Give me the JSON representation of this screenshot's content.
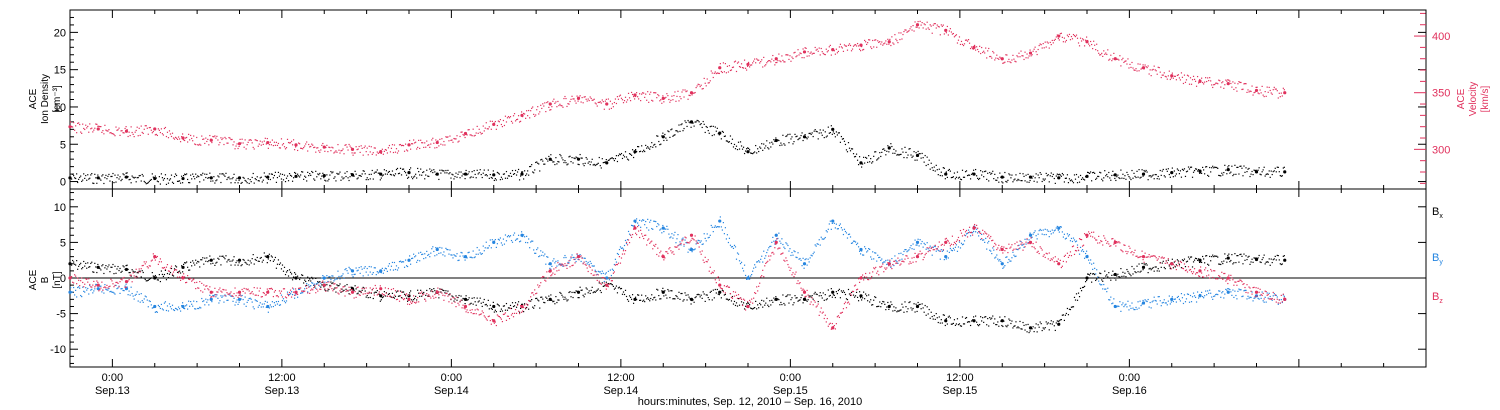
{
  "chart_data": [
    {
      "type": "scatter",
      "panel": "top",
      "ylabel_left": [
        "ACE",
        "Ion Density",
        "[cm⁻³]"
      ],
      "ylabel_right": [
        "ACE",
        "Velocity",
        "[km/s]"
      ],
      "yticks_left": [
        0,
        5,
        10,
        15,
        20
      ],
      "ylim_left": [
        -1,
        23
      ],
      "yticks_right": [
        300,
        350,
        400
      ],
      "ylim_right": [
        265,
        423
      ],
      "x_unit": "hours since Sep.12 21:00",
      "xlim": [
        0,
        96
      ],
      "series": [
        {
          "color": "#000000",
          "axis": "left",
          "x": [
            0,
            2,
            4,
            6,
            8,
            10,
            12,
            14,
            16,
            18,
            20,
            22,
            24,
            26,
            28,
            30,
            32,
            34,
            36,
            38,
            40,
            42,
            44,
            46,
            48,
            50,
            52,
            54,
            56,
            58,
            60,
            62,
            64,
            66,
            68,
            70,
            72,
            74,
            76,
            78,
            80,
            82,
            84,
            86
          ],
          "y": [
            0.5,
            0.5,
            0.6,
            0.4,
            0.4,
            0.5,
            0.5,
            0.6,
            0.7,
            0.8,
            0.9,
            1.0,
            1.2,
            1.0,
            1.0,
            0.9,
            1.0,
            3.0,
            3.0,
            2.5,
            4.0,
            6.0,
            8.0,
            6.5,
            4.0,
            5.5,
            6.0,
            7.0,
            2.5,
            4.5,
            3.5,
            1.0,
            1.0,
            0.6,
            0.6,
            0.5,
            0.7,
            0.9,
            1.0,
            1.2,
            1.4,
            1.6,
            1.3,
            1.3
          ]
        },
        {
          "color": "#e0305c",
          "axis": "right",
          "x": [
            0,
            2,
            4,
            6,
            8,
            10,
            12,
            14,
            16,
            18,
            20,
            22,
            24,
            26,
            28,
            30,
            32,
            34,
            36,
            38,
            40,
            42,
            44,
            46,
            48,
            50,
            52,
            54,
            56,
            58,
            60,
            62,
            64,
            66,
            68,
            70,
            72,
            74,
            76,
            78,
            80,
            82,
            84,
            86
          ],
          "y": [
            320,
            318,
            316,
            318,
            310,
            308,
            305,
            306,
            304,
            302,
            300,
            298,
            304,
            306,
            314,
            322,
            330,
            340,
            345,
            340,
            348,
            345,
            350,
            372,
            375,
            380,
            386,
            388,
            392,
            395,
            410,
            405,
            390,
            380,
            385,
            400,
            395,
            380,
            372,
            365,
            360,
            358,
            352,
            350
          ]
        }
      ]
    },
    {
      "type": "scatter",
      "panel": "bottom",
      "ylabel_left": [
        "ACE",
        "B",
        "[nT]"
      ],
      "yticks": [
        -10,
        -5,
        0,
        5,
        10
      ],
      "ylim": [
        -12.5,
        12.5
      ],
      "zero_line": true,
      "x_unit": "hours since Sep.12 21:00",
      "xlim": [
        0,
        96
      ],
      "series": [
        {
          "legend": "Bx",
          "color": "#000000",
          "x": [
            0,
            2,
            4,
            6,
            8,
            10,
            12,
            14,
            16,
            18,
            20,
            22,
            24,
            26,
            28,
            30,
            32,
            34,
            36,
            38,
            40,
            42,
            44,
            46,
            48,
            50,
            52,
            54,
            56,
            58,
            60,
            62,
            64,
            66,
            68,
            70,
            72,
            74,
            76,
            78,
            80,
            82,
            84,
            86
          ],
          "y": [
            2,
            1.5,
            1.2,
            0,
            1.5,
            2.5,
            2.5,
            3,
            0,
            -1,
            -1.5,
            -2.5,
            -2.5,
            -2,
            -3,
            -4,
            -4,
            -3,
            -2,
            -1,
            -3,
            -2,
            -3,
            -2,
            -4,
            -3,
            -3,
            -2,
            -2.5,
            -4,
            -4,
            -6,
            -6,
            -6,
            -7,
            -6.5,
            0,
            0.5,
            1.5,
            2,
            2.5,
            2.8,
            2.6,
            2.5
          ]
        },
        {
          "legend": "By",
          "color": "#2585e0",
          "x": [
            0,
            2,
            4,
            6,
            8,
            10,
            12,
            14,
            16,
            18,
            20,
            22,
            24,
            26,
            28,
            30,
            32,
            34,
            36,
            38,
            40,
            42,
            44,
            46,
            48,
            50,
            52,
            54,
            56,
            58,
            60,
            62,
            64,
            66,
            68,
            70,
            72,
            74,
            76,
            78,
            80,
            82,
            84,
            86
          ],
          "y": [
            -2,
            -1.5,
            -1.5,
            -4,
            -4,
            -3,
            -3,
            -4,
            -2,
            0,
            1,
            1,
            2.5,
            4,
            3,
            5,
            6,
            2,
            3,
            0,
            8,
            7,
            4,
            8,
            0,
            6,
            2,
            8,
            4,
            2,
            5,
            3,
            7,
            2,
            6,
            7,
            3,
            -4,
            -3.5,
            -3,
            -2.5,
            -2,
            -2.5,
            -3
          ]
        },
        {
          "legend": "Bz",
          "color": "#e0305c",
          "x": [
            0,
            2,
            4,
            6,
            8,
            10,
            12,
            14,
            16,
            18,
            20,
            22,
            24,
            26,
            28,
            30,
            32,
            34,
            36,
            38,
            40,
            42,
            44,
            46,
            48,
            50,
            52,
            54,
            56,
            58,
            60,
            62,
            64,
            66,
            68,
            70,
            72,
            74,
            76,
            78,
            80,
            82,
            84,
            86
          ],
          "y": [
            0,
            -1,
            -0.5,
            3,
            0,
            -2,
            -2,
            -2,
            -2,
            -1,
            -2,
            -1.5,
            -3,
            -2,
            -4,
            -6,
            -4,
            1,
            3,
            -1,
            7,
            3,
            6,
            -1,
            -4,
            5,
            -2,
            -7,
            0,
            2,
            3,
            5,
            7,
            4,
            5,
            2,
            6,
            5,
            3,
            2,
            1,
            0,
            -2,
            -3
          ]
        }
      ]
    }
  ],
  "legend": {
    "bx": "B",
    "bx_sub": "x",
    "by": "B",
    "by_sub": "y",
    "bz": "B",
    "bz_sub": "z"
  },
  "colors": {
    "black": "#000000",
    "pink": "#e0305c",
    "blue": "#2585e0"
  },
  "xaxis": {
    "ticks": [
      {
        "hour": 3,
        "time": "0:00",
        "date": "Sep.13"
      },
      {
        "hour": 15,
        "time": "12:00",
        "date": "Sep.13"
      },
      {
        "hour": 27,
        "time": "0:00",
        "date": "Sep.14"
      },
      {
        "hour": 39,
        "time": "12:00",
        "date": "Sep.14"
      },
      {
        "hour": 51,
        "time": "0:00",
        "date": "Sep.15"
      },
      {
        "hour": 63,
        "time": "12:00",
        "date": "Sep.15"
      },
      {
        "hour": 75,
        "time": "0:00",
        "date": "Sep.16"
      }
    ],
    "title": "hours:minutes, Sep. 12, 2010 – Sep. 16, 2010"
  }
}
